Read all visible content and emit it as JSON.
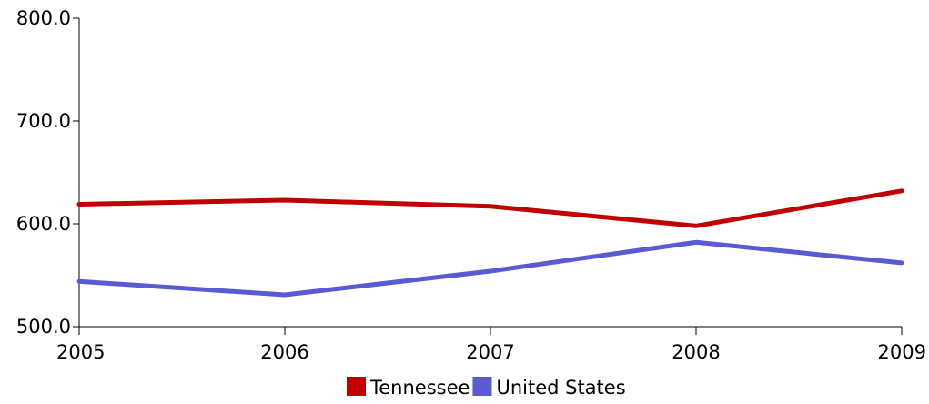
{
  "chart_data": {
    "type": "line",
    "x": [
      "2005",
      "2006",
      "2007",
      "2008",
      "2009"
    ],
    "y_ticks": [
      "500.0",
      "600.0",
      "700.0",
      "800.0"
    ],
    "ylim": [
      500,
      800
    ],
    "grid": false,
    "legend_position": "bottom",
    "series": [
      {
        "name": "Tennessee",
        "color": "#c00000",
        "values": [
          619,
          623,
          617,
          598,
          632
        ]
      },
      {
        "name": "United States",
        "color": "#5a5ad2",
        "values": [
          544,
          531,
          554,
          582,
          562
        ]
      }
    ]
  }
}
